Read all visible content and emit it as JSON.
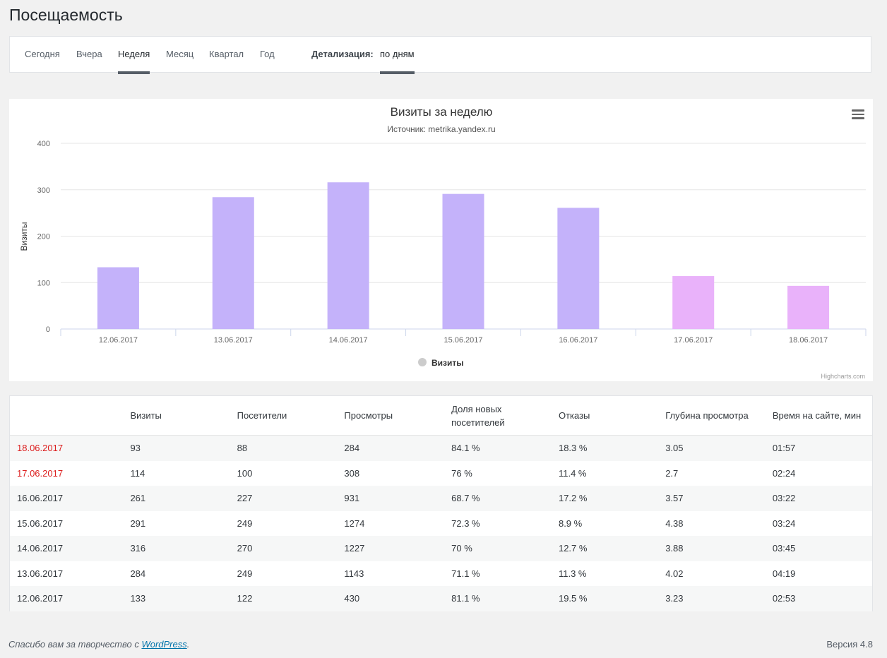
{
  "page": {
    "title": "Посещаемость"
  },
  "tabs": {
    "periods": [
      "Сегодня",
      "Вчера",
      "Неделя",
      "Месяц",
      "Квартал",
      "Год"
    ],
    "active": "Неделя",
    "detail_label": "Детализация:",
    "detail_value": "по дням"
  },
  "chart_data": {
    "type": "bar",
    "title": "Визиты за неделю",
    "subtitle": "Источник: metrika.yandex.ru",
    "ylabel": "Визиты",
    "categories": [
      "12.06.2017",
      "13.06.2017",
      "14.06.2017",
      "15.06.2017",
      "16.06.2017",
      "17.06.2017",
      "18.06.2017"
    ],
    "series": [
      {
        "name": "Визиты",
        "values": [
          133,
          284,
          316,
          291,
          261,
          114,
          93
        ]
      }
    ],
    "bar_colors": [
      "#c4b2fa",
      "#c4b2fa",
      "#c4b2fa",
      "#c4b2fa",
      "#c4b2fa",
      "#e9b2fa",
      "#e9b2fa"
    ],
    "yticks": [
      0,
      100,
      200,
      300,
      400
    ],
    "ylim": [
      0,
      400
    ],
    "legend_position": "bottom-center",
    "grid": true,
    "credits": "Highcharts.com"
  },
  "table": {
    "headers": [
      "",
      "Визиты",
      "Посетители",
      "Просмотры",
      "Доля новых посетителей",
      "Отказы",
      "Глубина просмотра",
      "Время на сайте, мин"
    ],
    "rows": [
      [
        "18.06.2017",
        "93",
        "88",
        "284",
        "84.1 %",
        "18.3 %",
        "3.05",
        "01:57"
      ],
      [
        "17.06.2017",
        "114",
        "100",
        "308",
        "76 %",
        "11.4 %",
        "2.7",
        "02:24"
      ],
      [
        "16.06.2017",
        "261",
        "227",
        "931",
        "68.7 %",
        "17.2 %",
        "3.57",
        "03:22"
      ],
      [
        "15.06.2017",
        "291",
        "249",
        "1274",
        "72.3 %",
        "8.9 %",
        "4.38",
        "03:24"
      ],
      [
        "14.06.2017",
        "316",
        "270",
        "1227",
        "70 %",
        "12.7 %",
        "3.88",
        "03:45"
      ],
      [
        "13.06.2017",
        "284",
        "249",
        "1143",
        "71.1 %",
        "11.3 %",
        "4.02",
        "04:19"
      ],
      [
        "12.06.2017",
        "133",
        "122",
        "430",
        "81.1 %",
        "19.5 %",
        "3.23",
        "02:53"
      ]
    ],
    "weekend_color": "#dc1e1e"
  },
  "footer": {
    "thanks_prefix": "Спасибо вам за творчество с ",
    "link_text": "WordPress",
    "thanks_suffix": ".",
    "version": "Версия 4.8"
  }
}
